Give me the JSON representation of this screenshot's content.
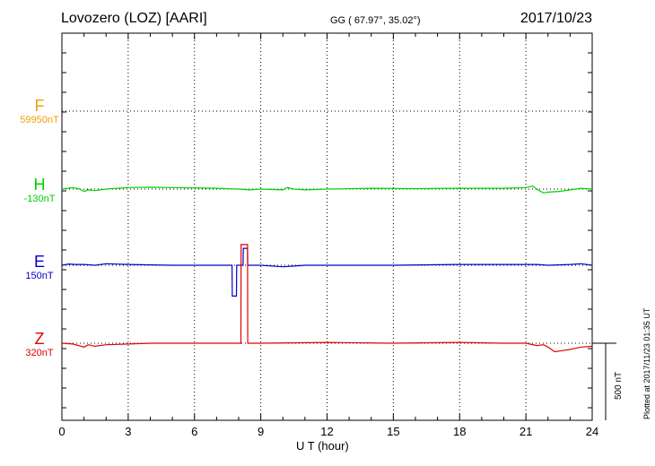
{
  "header": {
    "station": "Lovozero (LOZ)  [AARI]",
    "coords": "GG ( 67.97°,  35.02°)",
    "date": "2017/10/23"
  },
  "components": [
    {
      "letter": "F",
      "baseline": "59950nT",
      "color": "#f0a000"
    },
    {
      "letter": "H",
      "baseline": "-130nT",
      "color": "#00d000"
    },
    {
      "letter": "E",
      "baseline": "150nT",
      "color": "#0000c8"
    },
    {
      "letter": "Z",
      "baseline": "320nT",
      "color": "#e00000"
    }
  ],
  "footer": {
    "plotted": "Plotted at 2017/11/23 01:35 UT",
    "xlabel": "U T (hour)",
    "scale_label": "500 nT"
  },
  "chart_data": {
    "type": "line",
    "title": "Lovozero (LOZ)  [AARI]",
    "xlabel": "U T (hour)",
    "ylabel": "",
    "xlim": [
      0,
      24
    ],
    "xticks": [
      0,
      3,
      6,
      9,
      12,
      15,
      18,
      21,
      24
    ],
    "grid": true,
    "scale_bar_nT": 500,
    "series": [
      {
        "name": "F",
        "color": "#f0a000",
        "baseline_nT": 59950,
        "x": [],
        "y": []
      },
      {
        "name": "H",
        "color": "#00d000",
        "baseline_nT": -130,
        "x": [
          0,
          0.5,
          0.8,
          1.0,
          1.2,
          1.5,
          2.0,
          3.0,
          4.0,
          5.0,
          6.0,
          7.0,
          8.0,
          8.5,
          9.0,
          10.0,
          10.2,
          10.5,
          11.0,
          12.0,
          14.0,
          16.0,
          18.0,
          20.0,
          21.0,
          21.3,
          21.6,
          21.8,
          22.0,
          22.5,
          23.0,
          23.5,
          24.0
        ],
        "y": [
          0,
          10,
          0,
          -15,
          -5,
          -10,
          0,
          10,
          12,
          10,
          8,
          5,
          0,
          -5,
          0,
          -5,
          10,
          0,
          -5,
          0,
          5,
          3,
          5,
          5,
          10,
          20,
          -10,
          -25,
          -20,
          -15,
          -5,
          5,
          0
        ]
      },
      {
        "name": "E",
        "color": "#0000c8",
        "baseline_nT": 150,
        "x": [
          0,
          0.3,
          0.6,
          1.0,
          1.5,
          2.0,
          3.0,
          5.0,
          7.0,
          7.7,
          7.71,
          7.9,
          7.91,
          8.2,
          8.21,
          8.4,
          8.41,
          9.0,
          10.0,
          10.5,
          11.0,
          12.0,
          15.0,
          18.0,
          20.0,
          21.5,
          22.0,
          23.0,
          23.5,
          24.0
        ],
        "y": [
          0,
          8,
          5,
          5,
          0,
          10,
          5,
          0,
          0,
          0,
          -200,
          -200,
          0,
          0,
          110,
          110,
          0,
          0,
          -10,
          -5,
          0,
          0,
          0,
          5,
          5,
          5,
          0,
          5,
          10,
          0
        ]
      },
      {
        "name": "Z",
        "color": "#e00000",
        "baseline_nT": 320,
        "x": [
          0,
          0.5,
          1.0,
          1.2,
          1.5,
          2.0,
          3.0,
          4.0,
          6.0,
          8.0,
          8.1,
          8.11,
          8.4,
          8.41,
          9.0,
          12.0,
          15.0,
          18.0,
          20.0,
          21.0,
          21.5,
          21.8,
          22.0,
          22.3,
          22.8,
          23.0,
          23.5,
          24.0
        ],
        "y": [
          0,
          -5,
          -25,
          -10,
          -20,
          -10,
          -5,
          0,
          0,
          0,
          0,
          640,
          640,
          0,
          0,
          5,
          0,
          5,
          0,
          0,
          -15,
          -10,
          -25,
          -55,
          -45,
          -40,
          -25,
          -20
        ]
      }
    ]
  }
}
